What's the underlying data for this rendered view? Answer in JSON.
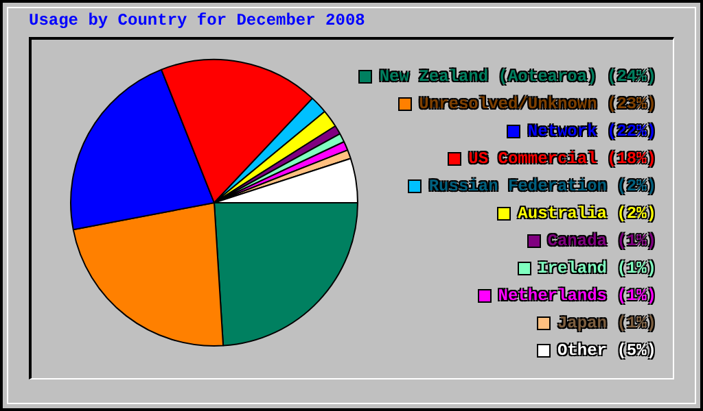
{
  "chart_data": {
    "type": "pie",
    "title": "Usage by Country for December 2008",
    "categories": [
      "New Zealand (Aotearoa) (24%)",
      "Unresolved/Unknown (23%)",
      "Network (22%)",
      "US Commercial (18%)",
      "Russian Federation (2%)",
      "Australia (2%)",
      "Canada (1%)",
      "Ireland (1%)",
      "Netherlands (1%)",
      "Japan (1%)",
      "Other (5%)"
    ],
    "values": [
      24,
      23,
      22,
      18,
      2,
      2,
      1,
      1,
      1,
      1,
      5
    ],
    "colors": [
      "#008060",
      "#ff8000",
      "#0000ff",
      "#ff0000",
      "#00c0ff",
      "#ffff00",
      "#800080",
      "#80ffc0",
      "#ff00ff",
      "#ffc080",
      "#ffffff"
    ],
    "legend": "right"
  }
}
